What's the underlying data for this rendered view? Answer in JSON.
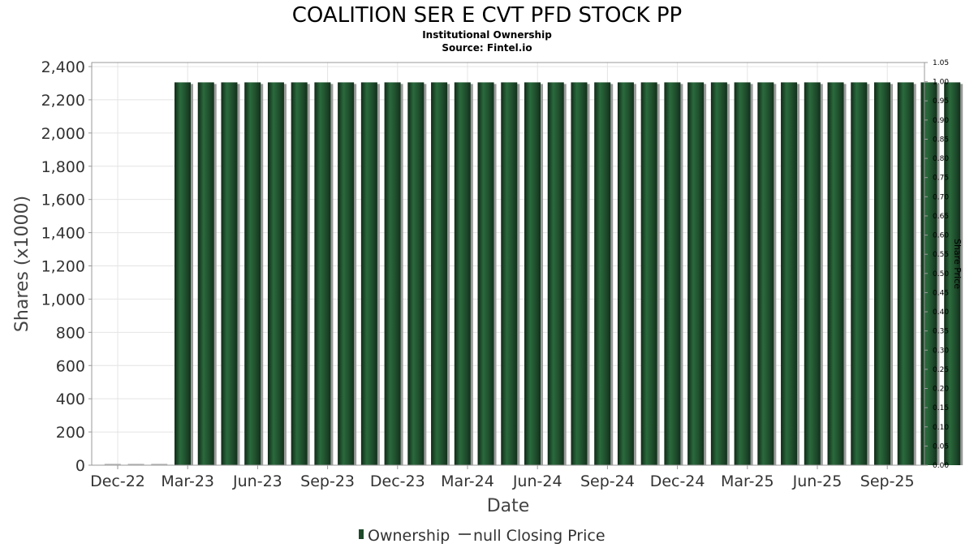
{
  "chart_data": {
    "type": "bar",
    "title": "COALITION SER E CVT PFD STOCK PP",
    "subtitle": "Institutional Ownership",
    "source": "Source: Fintel.io",
    "xlabel": "Date",
    "ylabel": "Shares (x1000)",
    "y2label": "Share Price",
    "ylim": [
      0,
      2400
    ],
    "y2lim": [
      0,
      1.05
    ],
    "yticks": [
      "0",
      "200",
      "400",
      "600",
      "800",
      "1,000",
      "1,200",
      "1,400",
      "1,600",
      "1,800",
      "2,000",
      "2,200",
      "2,400"
    ],
    "y2ticks": [
      "0.00",
      "0.05",
      "0.10",
      "0.15",
      "0.20",
      "0.25",
      "0.30",
      "0.35",
      "0.40",
      "0.45",
      "0.50",
      "0.55",
      "0.60",
      "0.65",
      "0.70",
      "0.75",
      "0.80",
      "0.85",
      "0.90",
      "0.95",
      "1.00",
      "1.05"
    ],
    "xticks": [
      "Dec-22",
      "Mar-23",
      "Jun-23",
      "Sep-23",
      "Dec-23",
      "Mar-24",
      "Jun-24",
      "Sep-24",
      "Dec-24",
      "Mar-25",
      "Jun-25",
      "Sep-25"
    ],
    "grid": true,
    "legend_position": "bottom-center",
    "series": [
      {
        "name": "Ownership",
        "color": "#1e4a2a",
        "values": [
          0,
          0,
          0,
          2305,
          2305,
          2305,
          2305,
          2305,
          2305,
          2305,
          2305,
          2305,
          2305,
          2305,
          2305,
          2305,
          2305,
          2305,
          2305,
          2305,
          2305,
          2305,
          2305,
          2305,
          2305,
          2305,
          2305,
          2305,
          2305,
          2305,
          2305,
          2305,
          2305,
          2305,
          2305,
          2305,
          2305
        ]
      }
    ],
    "legend": [
      {
        "label": "Ownership",
        "icon": "bar-swatch",
        "color": "#1e4a2a"
      },
      {
        "label": "null Closing Price",
        "icon": "line-swatch",
        "color": "#555555"
      }
    ]
  }
}
